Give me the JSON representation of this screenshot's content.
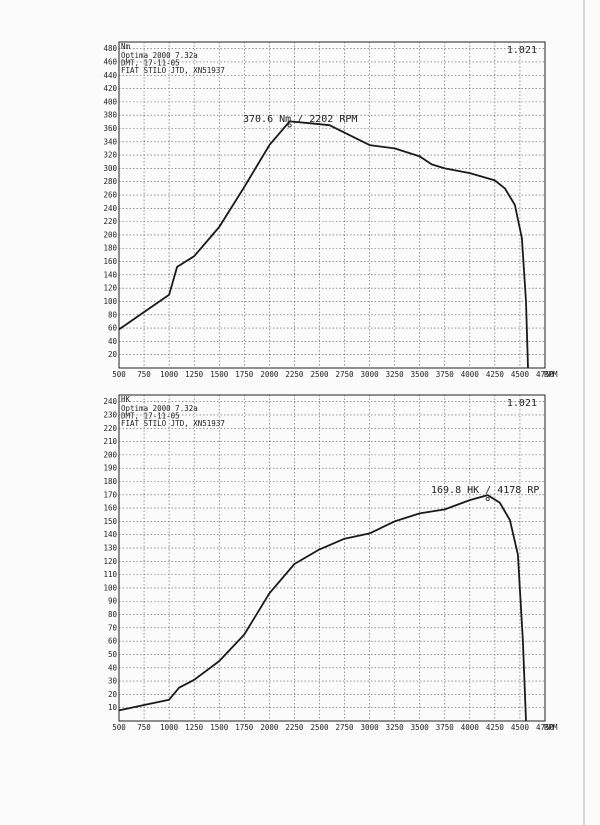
{
  "chart_data": [
    {
      "type": "line",
      "unit_label": "Nm",
      "header": [
        "Optima 2000 7.32a",
        "DMT, 17-11-05",
        "FIAT STILO JTD, XN51937"
      ],
      "code": "1.021",
      "annotation": "370.6 Nm / 2202 RPM",
      "peak": {
        "x": 2202,
        "y": 370.6
      },
      "x_unit": "RPM",
      "x_ticks": [
        "500",
        "750",
        "1000",
        "1250",
        "1500",
        "1750",
        "2000",
        "2250",
        "2500",
        "2750",
        "3000",
        "3250",
        "3500",
        "3750",
        "4000",
        "4250",
        "4500",
        "4750"
      ],
      "y_ticks": [
        "20",
        "40",
        "60",
        "80",
        "100",
        "120",
        "140",
        "160",
        "180",
        "200",
        "220",
        "240",
        "260",
        "280",
        "300",
        "320",
        "340",
        "360",
        "380",
        "400",
        "420",
        "440",
        "460",
        "480"
      ],
      "xlim": [
        500,
        4750
      ],
      "ylim": [
        0,
        490
      ],
      "grid": true,
      "series": [
        {
          "values": [
            [
              500,
              58
            ],
            [
              1000,
              110
            ],
            [
              1080,
              152
            ],
            [
              1250,
              168
            ],
            [
              1500,
              212
            ],
            [
              1750,
              272
            ],
            [
              2000,
              335
            ],
            [
              2202,
              370.6
            ],
            [
              2400,
              368
            ],
            [
              2600,
              365
            ],
            [
              3000,
              335
            ],
            [
              3250,
              330
            ],
            [
              3500,
              318
            ],
            [
              3620,
              306
            ],
            [
              3750,
              300
            ],
            [
              4000,
              293
            ],
            [
              4250,
              282
            ],
            [
              4350,
              270
            ],
            [
              4450,
              245
            ],
            [
              4520,
              195
            ],
            [
              4560,
              100
            ],
            [
              4580,
              0
            ]
          ]
        }
      ]
    },
    {
      "type": "line",
      "unit_label": "HK",
      "header": [
        "Optima 2000 7.32a",
        "DMT, 17-11-05",
        "FIAT STILO JTD, XN51937"
      ],
      "code": "1.021",
      "annotation": "169.8 HK / 4178 RP",
      "peak": {
        "x": 4178,
        "y": 169.8
      },
      "x_unit": "RPM",
      "x_ticks": [
        "500",
        "750",
        "1000",
        "1250",
        "1500",
        "1750",
        "2000",
        "2250",
        "2500",
        "2750",
        "3000",
        "3250",
        "3500",
        "3750",
        "4000",
        "4250",
        "4500",
        "4750"
      ],
      "y_ticks": [
        "10",
        "20",
        "30",
        "40",
        "50",
        "60",
        "70",
        "80",
        "90",
        "100",
        "110",
        "120",
        "130",
        "140",
        "150",
        "160",
        "170",
        "180",
        "190",
        "200",
        "210",
        "220",
        "230",
        "240"
      ],
      "xlim": [
        500,
        4750
      ],
      "ylim": [
        0,
        245
      ],
      "grid": true,
      "series": [
        {
          "values": [
            [
              500,
              8
            ],
            [
              750,
              12
            ],
            [
              1000,
              16
            ],
            [
              1100,
              25
            ],
            [
              1250,
              31
            ],
            [
              1500,
              45
            ],
            [
              1750,
              65
            ],
            [
              2000,
              96
            ],
            [
              2250,
              118
            ],
            [
              2500,
              129
            ],
            [
              2750,
              137
            ],
            [
              3000,
              141
            ],
            [
              3250,
              150
            ],
            [
              3500,
              156
            ],
            [
              3750,
              159
            ],
            [
              4000,
              166
            ],
            [
              4178,
              169.8
            ],
            [
              4300,
              164
            ],
            [
              4400,
              151
            ],
            [
              4480,
              125
            ],
            [
              4530,
              60
            ],
            [
              4560,
              0
            ]
          ]
        }
      ]
    }
  ]
}
